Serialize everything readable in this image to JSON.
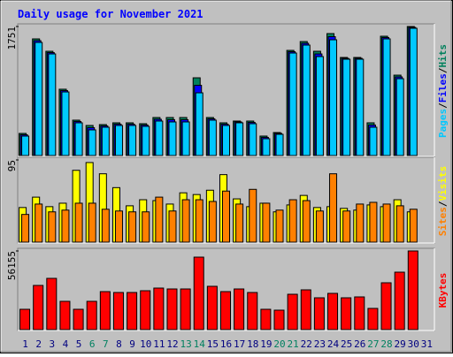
{
  "chart_data": [
    {
      "type": "bar",
      "title": "Daily usage for November 2021",
      "ylim": [
        0,
        1751
      ],
      "yticks": [
        1751
      ],
      "legend_separator": "/",
      "series": [
        {
          "name": "Hits",
          "color": "#00805c",
          "values": [
            300,
            1583,
            1415,
            900,
            480,
            408,
            420,
            444,
            444,
            432,
            516,
            516,
            516,
            1055,
            516,
            444,
            468,
            468,
            264,
            312,
            1427,
            1547,
            1415,
            1655,
            1331,
            1331,
            444,
            1619,
            1091,
            1751,
            0
          ]
        },
        {
          "name": "Files",
          "color": "#0000ff",
          "values": [
            282,
            1559,
            1397,
            881,
            462,
            378,
            402,
            426,
            426,
            414,
            492,
            486,
            486,
            953,
            498,
            426,
            456,
            450,
            246,
            300,
            1409,
            1523,
            1379,
            1613,
            1319,
            1319,
            414,
            1601,
            1067,
            1739,
            0
          ]
        },
        {
          "name": "Pages",
          "color": "#00c8ff",
          "values": [
            264,
            1535,
            1379,
            863,
            444,
            348,
            384,
            408,
            408,
            396,
            468,
            456,
            456,
            851,
            480,
            408,
            444,
            432,
            228,
            288,
            1391,
            1499,
            1343,
            1571,
            1307,
            1307,
            384,
            1583,
            1043,
            1727,
            0
          ]
        }
      ]
    },
    {
      "type": "bar",
      "ylim": [
        0,
        95
      ],
      "yticks": [
        95
      ],
      "legend_separator": "/",
      "series": [
        {
          "name": "Visits",
          "color": "#ffff00",
          "values": [
            40,
            52,
            41,
            45,
            83,
            92,
            79,
            63,
            42,
            49,
            48,
            44,
            57,
            55,
            60,
            78,
            50,
            41,
            45,
            35,
            43,
            54,
            40,
            41,
            39,
            37,
            43,
            41,
            49,
            35,
            0
          ]
        },
        {
          "name": "Sites",
          "color": "#ff8000",
          "values": [
            32,
            44,
            35,
            37,
            45,
            45,
            38,
            36,
            35,
            35,
            52,
            36,
            49,
            49,
            47,
            59,
            44,
            61,
            45,
            37,
            49,
            48,
            36,
            79,
            36,
            44,
            46,
            44,
            42,
            38,
            0
          ]
        }
      ]
    },
    {
      "type": "bar",
      "ylim": [
        0,
        56155
      ],
      "yticks": [
        56155
      ],
      "categories": [
        "1",
        "2",
        "3",
        "4",
        "5",
        "6",
        "7",
        "8",
        "9",
        "10",
        "11",
        "12",
        "13",
        "14",
        "15",
        "16",
        "17",
        "18",
        "19",
        "20",
        "21",
        "22",
        "23",
        "24",
        "25",
        "26",
        "27",
        "28",
        "29",
        "30",
        "31"
      ],
      "category_colors": [
        "#000080",
        "#000080",
        "#000080",
        "#000080",
        "#000080",
        "#008060",
        "#008060",
        "#000080",
        "#000080",
        "#000080",
        "#000080",
        "#000080",
        "#008060",
        "#008060",
        "#000080",
        "#000080",
        "#000080",
        "#000080",
        "#000080",
        "#008060",
        "#008060",
        "#000080",
        "#000080",
        "#000080",
        "#000080",
        "#000080",
        "#008060",
        "#008060",
        "#000080",
        "#000080",
        "#000080"
      ],
      "series": [
        {
          "name": "KBytes",
          "color": "#ff0000",
          "values": [
            14512,
            31548,
            36595,
            20190,
            14512,
            20190,
            27131,
            26500,
            26500,
            27762,
            29655,
            29024,
            29024,
            51738,
            30917,
            27131,
            29024,
            26500,
            14512,
            13881,
            25238,
            28393,
            22714,
            25869,
            22714,
            23345,
            15143,
            33440,
            41012,
            56155,
            0
          ]
        }
      ]
    }
  ]
}
